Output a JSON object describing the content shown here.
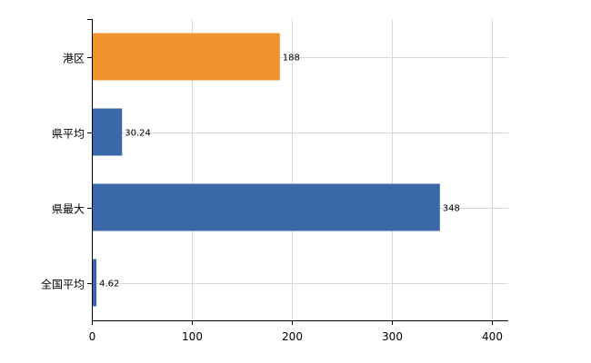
{
  "chart_data": {
    "type": "bar",
    "orientation": "horizontal",
    "categories": [
      "港区",
      "県平均",
      "県最大",
      "全国平均"
    ],
    "values": [
      188,
      30.24,
      348,
      4.62
    ],
    "value_labels": [
      "188",
      "30.24",
      "348",
      "4.62"
    ],
    "bar_colors": [
      "#F0922E",
      "#3A68A8",
      "#3A68A8",
      "#3A68A8"
    ],
    "xlim": [
      0,
      400
    ],
    "xticks": [
      0,
      100,
      200,
      300,
      400
    ],
    "xtick_labels": [
      "0",
      "100",
      "200",
      "300",
      "400"
    ],
    "grid": true,
    "title": "",
    "xlabel": "",
    "ylabel": ""
  }
}
